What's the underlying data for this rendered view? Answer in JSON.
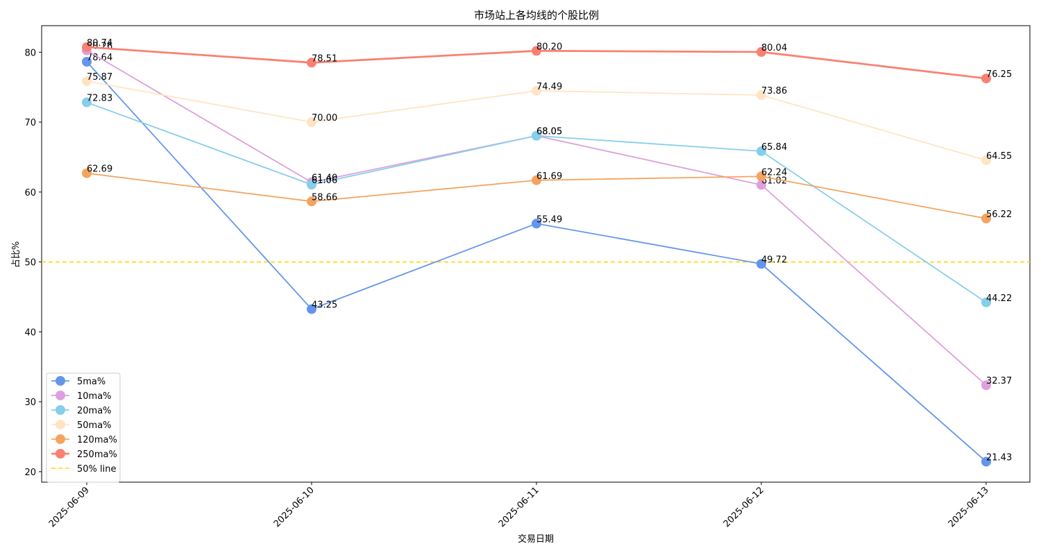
{
  "chart_data": {
    "type": "line",
    "title": "市场站上各均线的个股比例",
    "xlabel": "交易日期",
    "ylabel": "占比%",
    "x": [
      "2025-06-09",
      "2025-06-10",
      "2025-06-11",
      "2025-06-12",
      "2025-06-13"
    ],
    "ylim": [
      18.5,
      83.8
    ],
    "yticks": [
      20,
      30,
      40,
      50,
      60,
      70,
      80
    ],
    "grid": false,
    "legend_position": "lower-left",
    "series": [
      {
        "name": "5ma%",
        "color": "#6495ED",
        "line_width": 1.8,
        "values": [
          78.64,
          43.25,
          55.49,
          49.72,
          21.43
        ],
        "labels": [
          "78.64",
          "43.25",
          "55.49",
          "49.72",
          "21.43"
        ]
      },
      {
        "name": "10ma%",
        "color": "#DDA0DD",
        "line_width": 1.8,
        "values": [
          80.26,
          61.4,
          68.05,
          61.02,
          32.37
        ],
        "labels": [
          "80.26",
          "61.40",
          "68.05",
          "61.02",
          "32.37"
        ]
      },
      {
        "name": "20ma%",
        "color": "#87CEEB",
        "line_width": 1.8,
        "values": [
          72.83,
          61.06,
          68.05,
          65.84,
          44.22
        ],
        "labels": [
          "72.83",
          "61.06",
          "68.05",
          "65.84",
          "44.22"
        ]
      },
      {
        "name": "50ma%",
        "color": "#FFE4C4",
        "line_width": 1.8,
        "values": [
          75.87,
          70.0,
          74.49,
          73.86,
          64.55
        ],
        "labels": [
          "75.87",
          "70.00",
          "74.49",
          "73.86",
          "64.55"
        ]
      },
      {
        "name": "120ma%",
        "color": "#F4A460",
        "line_width": 1.8,
        "values": [
          62.69,
          58.66,
          61.69,
          62.24,
          56.22
        ],
        "labels": [
          "62.69",
          "58.66",
          "61.69",
          "62.24",
          "56.22"
        ]
      },
      {
        "name": "250ma%",
        "color": "#FA8072",
        "line_width": 2.8,
        "values": [
          80.74,
          78.51,
          80.2,
          80.04,
          76.25
        ],
        "labels": [
          "80.74",
          "78.51",
          "80.20",
          "80.04",
          "76.25"
        ]
      }
    ],
    "reference_line": {
      "name": "50% line",
      "value": 50,
      "color": "#FFD700"
    }
  }
}
